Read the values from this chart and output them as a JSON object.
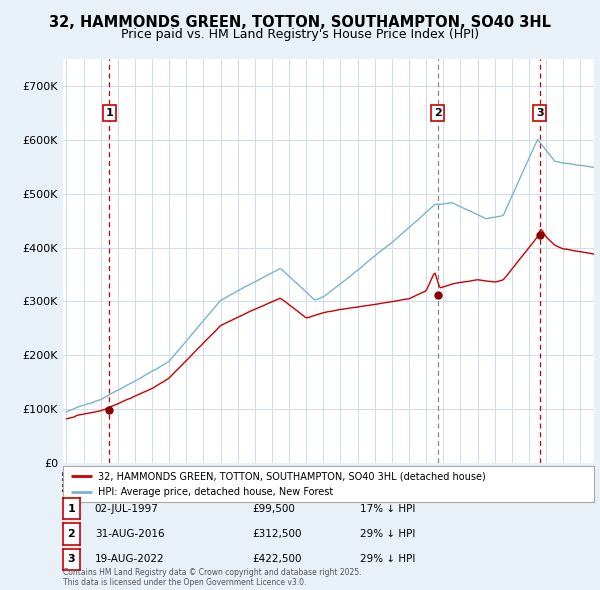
{
  "title_line1": "32, HAMMONDS GREEN, TOTTON, SOUTHAMPTON, SO40 3HL",
  "title_line2": "Price paid vs. HM Land Registry's House Price Index (HPI)",
  "title_fontsize": 10.5,
  "subtitle_fontsize": 9,
  "background_color": "#e8f0f8",
  "plot_bg_color": "#ffffff",
  "grid_color": "#d0dce8",
  "ylim": [
    0,
    750000
  ],
  "yticks": [
    0,
    100000,
    200000,
    300000,
    400000,
    500000,
    600000,
    700000
  ],
  "ytick_labels": [
    "£0",
    "£100K",
    "£200K",
    "£300K",
    "£400K",
    "£500K",
    "£600K",
    "£700K"
  ],
  "hpi_color": "#7ab3d4",
  "price_color": "#cc0000",
  "purchase_marker_color": "#880000",
  "vline1_color": "#cc0000",
  "vline2_color": "#888888",
  "vline3_color": "#cc0000",
  "legend_label_price": "32, HAMMONDS GREEN, TOTTON, SOUTHAMPTON, SO40 3HL (detached house)",
  "legend_label_hpi": "HPI: Average price, detached house, New Forest",
  "purchase1_x": 1997.5,
  "purchase1_y": 99500,
  "purchase2_x": 2016.67,
  "purchase2_y": 312500,
  "purchase3_x": 2022.63,
  "purchase3_y": 422500,
  "table_row1": [
    "1",
    "02-JUL-1997",
    "£99,500",
    "17% ↓ HPI"
  ],
  "table_row2": [
    "2",
    "31-AUG-2016",
    "£312,500",
    "29% ↓ HPI"
  ],
  "table_row3": [
    "3",
    "19-AUG-2022",
    "£422,500",
    "29% ↓ HPI"
  ],
  "footer": "Contains HM Land Registry data © Crown copyright and database right 2025.\nThis data is licensed under the Open Government Licence v3.0.",
  "xmin": 1994.8,
  "xmax": 2025.8
}
